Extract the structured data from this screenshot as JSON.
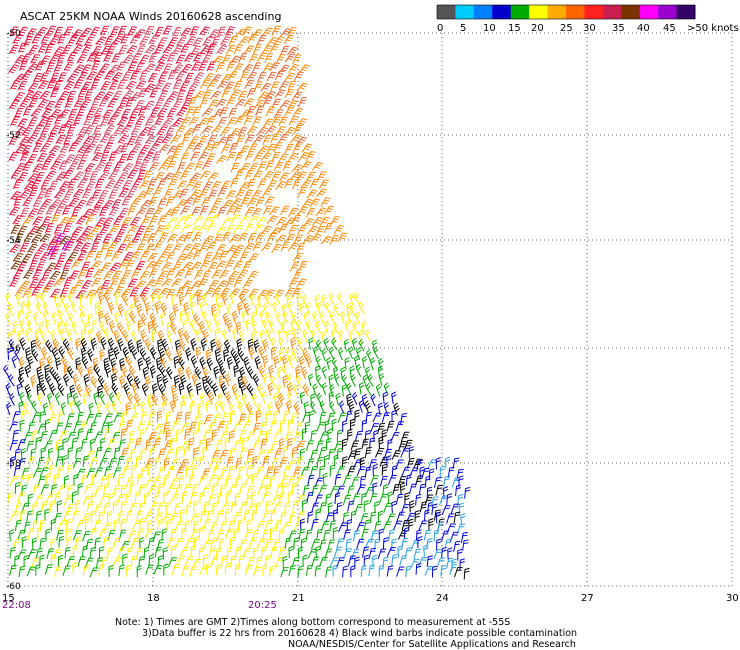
{
  "title": "ASCAT 25KM NOAA Winds 20160628 ascending",
  "color_scale": {
    "colors": [
      "#555555",
      "#00ccff",
      "#0080ff",
      "#0000cc",
      "#00aa00",
      "#ffff00",
      "#ffaa00",
      "#ff6600",
      "#ff2020",
      "#c81e50",
      "#7a3300",
      "#ff00ff",
      "#9900cc",
      "#330066"
    ],
    "labels": [
      "0",
      "5",
      "10",
      "15",
      "20",
      "25",
      "30",
      "35",
      "40",
      "45",
      ">50 knots"
    ]
  },
  "axes": {
    "x_ticks": [
      "15",
      "18",
      "21",
      "24",
      "27",
      "30"
    ],
    "y_ticks": [
      "-50",
      "-52",
      "-54",
      "-56",
      "-58",
      "-60"
    ]
  },
  "time_labels": [
    "22:08",
    "20:25"
  ],
  "notes": [
    "Note: 1) Times are GMT 2)Times along bottom correspond to measurement at -55S",
    "3)Data buffer is 22 hrs from 20160628 4) Black wind barbs indicate possible contamination",
    "NOAA/NESDIS/Center for Satellite Applications and Research"
  ],
  "legend_colors": {
    "black": "#000000",
    "blue": "#0000dd",
    "green": "#00aa00",
    "yellow": "#ffee00",
    "orange": "#ff8800",
    "red": "#e8103a",
    "magenta": "#cc00cc"
  }
}
